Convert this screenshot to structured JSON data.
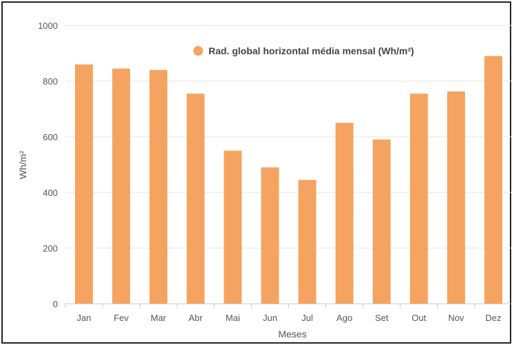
{
  "chart_data": {
    "type": "bar",
    "categories": [
      "Jan",
      "Fev",
      "Mar",
      "Abr",
      "Mai",
      "Jun",
      "Jul",
      "Ago",
      "Set",
      "Out",
      "Nov",
      "Dez"
    ],
    "series": [
      {
        "name": "Rad. global horizontal média mensal (Wh/m²)",
        "values": [
          860,
          845,
          840,
          755,
          550,
          490,
          445,
          650,
          590,
          755,
          763,
          890
        ]
      }
    ],
    "xlabel": "Meses",
    "ylabel": "Wh/m²",
    "ylim": [
      0,
      1000
    ],
    "yticks": [
      0,
      200,
      400,
      600,
      800,
      1000
    ],
    "grid": true,
    "legend_position": "top-right",
    "bar_color": "#f4a460"
  }
}
